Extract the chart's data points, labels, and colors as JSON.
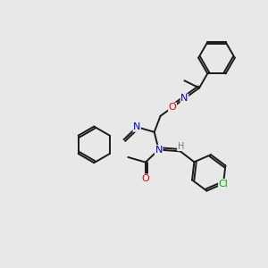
{
  "bg_color": "#e8e8e8",
  "atom_colors": {
    "N": "#0000cc",
    "O": "#dd0000",
    "Cl": "#00aa00",
    "H": "#777777"
  },
  "bond_color": "#1a1a1a",
  "bond_width": 1.4,
  "figsize": [
    3.0,
    3.0
  ],
  "dpi": 100,
  "xlim": [
    0,
    10
  ],
  "ylim": [
    0,
    10
  ]
}
